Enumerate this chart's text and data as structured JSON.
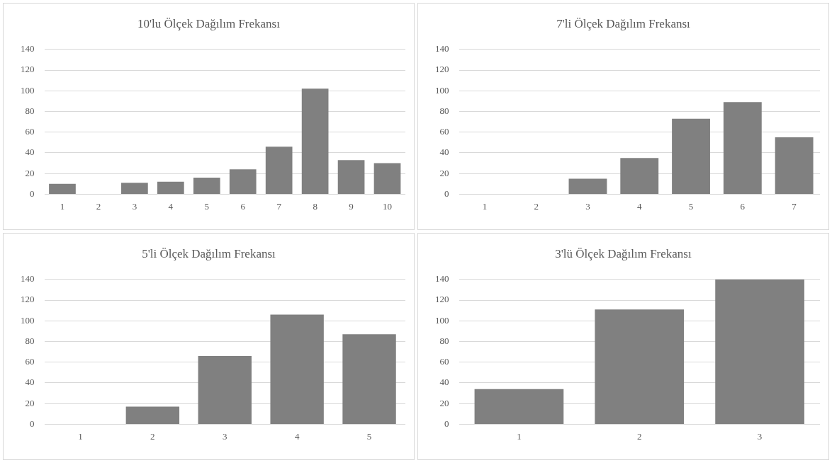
{
  "chart_data": [
    {
      "type": "bar",
      "title": "10'lu Ölçek Dağılım Frekansı",
      "categories": [
        "1",
        "2",
        "3",
        "4",
        "5",
        "6",
        "7",
        "8",
        "9",
        "10"
      ],
      "values": [
        10,
        0,
        11,
        12,
        16,
        24,
        46,
        102,
        33,
        30
      ],
      "color": "#808080",
      "ylim": [
        0,
        140
      ],
      "yticks": [
        0,
        20,
        40,
        60,
        80,
        100,
        120,
        140
      ],
      "grid": "y"
    },
    {
      "type": "bar",
      "title": "7'li Ölçek Dağılım Frekansı",
      "categories": [
        "1",
        "2",
        "3",
        "4",
        "5",
        "6",
        "7"
      ],
      "values": [
        0,
        0,
        15,
        35,
        73,
        89,
        55
      ],
      "color": "#808080",
      "ylim": [
        0,
        140
      ],
      "yticks": [
        0,
        20,
        40,
        60,
        80,
        100,
        120,
        140
      ],
      "grid": "y"
    },
    {
      "type": "bar",
      "title": "5'li Ölçek Dağılım Frekansı",
      "categories": [
        "1",
        "2",
        "3",
        "4",
        "5"
      ],
      "values": [
        0,
        17,
        66,
        106,
        87
      ],
      "color": "#808080",
      "ylim": [
        0,
        140
      ],
      "yticks": [
        0,
        20,
        40,
        60,
        80,
        100,
        120,
        140
      ],
      "grid": "y"
    },
    {
      "type": "bar",
      "title": "3'lü Ölçek Dağılım Frekansı",
      "categories": [
        "1",
        "2",
        "3"
      ],
      "values": [
        34,
        111,
        140
      ],
      "color": "#808080",
      "ylim": [
        0,
        140
      ],
      "yticks": [
        0,
        20,
        40,
        60,
        80,
        100,
        120,
        140
      ],
      "grid": "y"
    }
  ]
}
